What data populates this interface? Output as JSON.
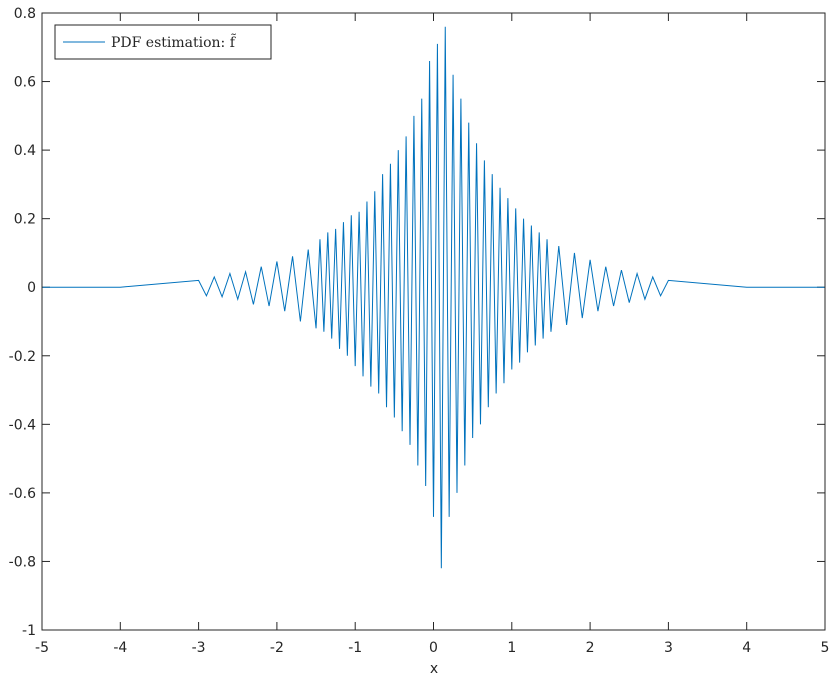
{
  "chart_data": {
    "type": "line",
    "xlabel": "x",
    "x": [
      -5,
      -4,
      -3.0,
      -2.9,
      -2.8,
      -2.7,
      -2.6,
      -2.5,
      -2.4,
      -2.3,
      -2.2,
      -2.1,
      -2.0,
      -1.9,
      -1.8,
      -1.7,
      -1.6,
      -1.5,
      -1.45,
      -1.4,
      -1.35,
      -1.3,
      -1.25,
      -1.2,
      -1.15,
      -1.1,
      -1.05,
      -1.0,
      -0.95,
      -0.9,
      -0.85,
      -0.8,
      -0.75,
      -0.7,
      -0.65,
      -0.6,
      -0.55,
      -0.5,
      -0.45,
      -0.4,
      -0.35,
      -0.3,
      -0.25,
      -0.2,
      -0.15,
      -0.1,
      -0.05,
      0,
      0.05,
      0.1,
      0.15,
      0.2,
      0.25,
      0.3,
      0.35,
      0.4,
      0.45,
      0.5,
      0.55,
      0.6,
      0.65,
      0.7,
      0.75,
      0.8,
      0.85,
      0.9,
      0.95,
      1.0,
      1.05,
      1.1,
      1.15,
      1.2,
      1.25,
      1.3,
      1.35,
      1.4,
      1.45,
      1.5,
      1.6,
      1.7,
      1.8,
      1.9,
      2.0,
      2.1,
      2.2,
      2.3,
      2.4,
      2.5,
      2.6,
      2.7,
      2.8,
      2.9,
      3.0,
      4,
      5
    ],
    "series": [
      {
        "name": "PDF estimation: f̃",
        "color": "#0072bd",
        "values": [
          0,
          0,
          0.02,
          -0.025,
          0.03,
          -0.028,
          0.04,
          -0.035,
          0.045,
          -0.05,
          0.06,
          -0.055,
          0.075,
          -0.07,
          0.09,
          -0.1,
          0.11,
          -0.12,
          0.14,
          -0.13,
          0.16,
          -0.15,
          0.17,
          -0.18,
          0.19,
          -0.2,
          0.21,
          -0.23,
          0.22,
          -0.26,
          0.25,
          -0.29,
          0.28,
          -0.31,
          0.33,
          -0.35,
          0.36,
          -0.38,
          0.4,
          -0.42,
          0.44,
          -0.46,
          0.5,
          -0.52,
          0.55,
          -0.58,
          0.66,
          -0.67,
          0.71,
          -0.82,
          0.76,
          -0.67,
          0.62,
          -0.6,
          0.55,
          -0.52,
          0.48,
          -0.44,
          0.42,
          -0.4,
          0.37,
          -0.35,
          0.33,
          -0.31,
          0.29,
          -0.28,
          0.26,
          -0.24,
          0.23,
          -0.22,
          0.2,
          -0.19,
          0.18,
          -0.17,
          0.16,
          -0.15,
          0.14,
          -0.13,
          0.12,
          -0.11,
          0.1,
          -0.09,
          0.08,
          -0.07,
          0.06,
          -0.055,
          0.05,
          -0.045,
          0.04,
          -0.035,
          0.03,
          -0.025,
          0.02,
          0,
          0
        ]
      }
    ],
    "xlim": [
      -5,
      5
    ],
    "ylim": [
      -1,
      0.8
    ],
    "xticks": [
      -5,
      -4,
      -3,
      -2,
      -1,
      0,
      1,
      2,
      3,
      4,
      5
    ],
    "yticks": [
      -1,
      -0.8,
      -0.6,
      -0.4,
      -0.2,
      0,
      0.2,
      0.4,
      0.6,
      0.8
    ],
    "grid": false,
    "legend": "top-left"
  }
}
